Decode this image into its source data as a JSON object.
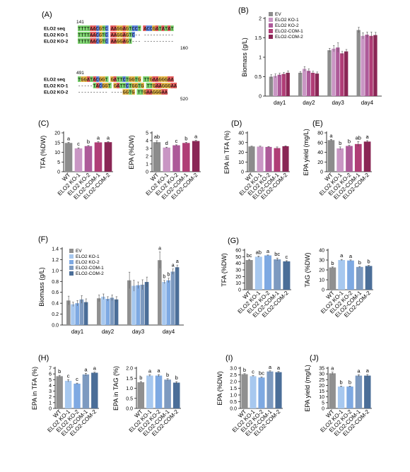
{
  "colors": {
    "ev_gray": "#8c8c8c",
    "ko1_purple": "#c996c4",
    "ko2_purple": "#ad5a99",
    "com1_purple": "#b03d76",
    "com2_purple": "#8a2655",
    "wt_gray": "#909090",
    "ko1_blue": "#a7c8ef",
    "ko2_blue": "#7ea9e2",
    "com1_blue": "#7d9ac0",
    "com2_blue": "#4b6e98",
    "seq_green": "#7bd36d",
    "seq_blue": "#5f86e0",
    "seq_red": "#e35c5c",
    "seq_yellow": "#e8b84a"
  },
  "panel_a": {
    "label": "(A)",
    "block1": {
      "start": "141",
      "end": "160",
      "rows": [
        {
          "name": "ELO2 seq",
          "seq": "TTTTAACGTC AAGGAGTCCT ACCGATATAT"
        },
        {
          "name": "ELO2 KO-1",
          "seq": "TTTTAACGTC AAGGAGTC-- ----------"
        },
        {
          "name": "ELO2 KO-2",
          "seq": "TTTTAACGTC AAGGAGT--- ----------"
        }
      ]
    },
    "block2": {
      "start": "491",
      "end": "520",
      "rows": [
        {
          "name": "ELO2 seq",
          "seq": "TGGATACGGT GATTCTGGTG TTGAAGGGAA"
        },
        {
          "name": "ELO2 KO-1",
          "seq": "-----TACGGT GATTCTGGTG TTGAAGGGAA"
        },
        {
          "name": "ELO2 KO-2",
          "seq": "---------- ----GGTG TTGAAGGGAA"
        }
      ]
    }
  },
  "chart_data": [
    {
      "panel": "(B)",
      "type": "bar",
      "categories": [
        "day1",
        "day2",
        "day3",
        "day4"
      ],
      "ylabel": "Biomass (g/L)",
      "ylim": [
        0,
        2.0
      ],
      "yticks": [
        "0",
        "0.5",
        "1",
        "1.5",
        "2"
      ],
      "legend": "top-left",
      "series": [
        {
          "name": "EV",
          "values": [
            0.5,
            0.6,
            1.18,
            1.7
          ],
          "err": [
            0.05,
            0.03,
            0.05,
            0.07
          ]
        },
        {
          "name": "ELO2 KO-1",
          "values": [
            0.52,
            0.7,
            1.22,
            1.55
          ],
          "err": [
            0.05,
            0.06,
            0.08,
            0.08
          ]
        },
        {
          "name": "ELO2 KO-2",
          "values": [
            0.55,
            0.65,
            1.25,
            1.58
          ],
          "err": [
            0.04,
            0.05,
            0.12,
            0.07
          ]
        },
        {
          "name": "ELO2-COM-1",
          "values": [
            0.57,
            0.6,
            1.1,
            1.55
          ],
          "err": [
            0.04,
            0.04,
            0.05,
            0.1
          ]
        },
        {
          "name": "ELO2-COM-2",
          "values": [
            0.6,
            0.58,
            1.15,
            1.57
          ],
          "err": [
            0.05,
            0.04,
            0.05,
            0.07
          ]
        }
      ]
    },
    {
      "panel": "(C)",
      "type": "bar",
      "categories": [
        "WT",
        "ELO2 KO-1",
        "ELO2 KO-2",
        "ELO2-COM-1",
        "ELO2-COM-2"
      ],
      "ylabel": "TFA (%DW)",
      "ylim": [
        0,
        20
      ],
      "yticks": [
        "0",
        "5",
        "10",
        "15",
        "20"
      ],
      "values": [
        14.8,
        12.0,
        13.2,
        15.1,
        15.2
      ],
      "err": [
        0.3,
        0.3,
        0.3,
        0.4,
        0.3
      ],
      "letters": [
        "a",
        "c",
        "b",
        "a",
        "a"
      ]
    },
    {
      "panel": "",
      "type": "bar",
      "categories": [
        "WT",
        "ELO2 KO-1",
        "ELO2 KO-2",
        "ELO2-COM-1",
        "ELO2-COM-2"
      ],
      "ylabel": "EPA (%DW)",
      "ylim": [
        0,
        5
      ],
      "yticks": [
        "0",
        "1",
        "2",
        "3",
        "4",
        "5"
      ],
      "values": [
        3.8,
        3.1,
        3.4,
        3.7,
        3.95
      ],
      "err": [
        0.2,
        0.06,
        0.06,
        0.08,
        0.1
      ],
      "letters": [
        "ab",
        "d",
        "c",
        "b",
        "a"
      ]
    },
    {
      "panel": "(D)",
      "type": "bar",
      "categories": [
        "WT",
        "ELO2 KO-1",
        "ELO2 KO-2",
        "ELO2-COM-1",
        "ELO2-COM-2"
      ],
      "ylabel": "EPA in TFA (%)",
      "ylim": [
        0,
        40
      ],
      "yticks": [
        "0",
        "10",
        "20",
        "30",
        "40"
      ],
      "values": [
        26.0,
        25.8,
        25.5,
        24.3,
        26.2
      ],
      "err": [
        0.3,
        0.5,
        0.4,
        1.2,
        0.5
      ],
      "letters": []
    },
    {
      "panel": "(E)",
      "type": "bar",
      "categories": [
        "WT",
        "ELO2 KO-1",
        "ELO2 KO-2",
        "ELO2-COM-1",
        "ELO2-COM-2"
      ],
      "ylabel": "EPA yield (mg/L)",
      "ylim": [
        0,
        80
      ],
      "yticks": [
        "0",
        "20",
        "40",
        "60",
        "80"
      ],
      "values": [
        65,
        48,
        53,
        57,
        62
      ],
      "err": [
        1.5,
        3,
        1.5,
        5,
        2
      ],
      "letters": [
        "a",
        "b",
        "b",
        "ab",
        "a"
      ]
    },
    {
      "panel": "(F)",
      "type": "bar",
      "categories": [
        "day1",
        "day2",
        "day3",
        "day4"
      ],
      "ylabel": "Biomass (g/L)",
      "ylim": [
        0,
        1.4
      ],
      "yticks": [
        "0.0",
        "0.2",
        "0.4",
        "0.6",
        "0.8",
        "1.0",
        "1.2",
        "1.4"
      ],
      "legend": "top-left",
      "series": [
        {
          "name": "EV",
          "values": [
            0.45,
            0.49,
            0.82,
            1.19
          ],
          "err": [
            0.08,
            0.06,
            0.15,
            0.15
          ]
        },
        {
          "name": "ELO2 KO-1",
          "values": [
            0.38,
            0.52,
            0.72,
            0.79
          ],
          "err": [
            0.04,
            0.05,
            0.1,
            0.03
          ]
        },
        {
          "name": "ELO2 KO-2",
          "values": [
            0.4,
            0.48,
            0.73,
            0.82
          ],
          "err": [
            0.05,
            0.04,
            0.06,
            0.04
          ]
        },
        {
          "name": "ELO2-COM-1",
          "values": [
            0.47,
            0.5,
            0.74,
            0.98
          ],
          "err": [
            0.07,
            0.05,
            0.09,
            0.05
          ]
        },
        {
          "name": "ELO2-COM-2",
          "values": [
            0.42,
            0.47,
            0.79,
            1.06
          ],
          "err": [
            0.06,
            0.05,
            0.09,
            0.04
          ]
        }
      ],
      "annotation_day": 3,
      "letters": [
        "a",
        "b",
        "b",
        "a",
        "a"
      ]
    },
    {
      "panel": "(G)",
      "type": "bar",
      "categories": [
        "WT",
        "ELO2 KO-1",
        "ELO2 KO-2",
        "ELO2-COM-1",
        "ELO2-COM-2"
      ],
      "ylabel": "TFA (%DW)",
      "ylim": [
        0,
        60
      ],
      "yticks": [
        "0",
        "10",
        "20",
        "30",
        "40",
        "50",
        "60"
      ],
      "values": [
        45,
        50,
        52,
        46,
        43
      ],
      "err": [
        1,
        1,
        0.6,
        2,
        1
      ],
      "letters": [
        "bc",
        "ab",
        "a",
        "bc",
        "c"
      ]
    },
    {
      "panel": "",
      "type": "bar",
      "categories": [
        "WT",
        "ELO2 KO-1",
        "ELO2 KO-2",
        "ELO2-COM-1",
        "ELO2-COM-2"
      ],
      "ylabel": "TAG (%DW)",
      "ylim": [
        0,
        40
      ],
      "yticks": [
        "0",
        "10",
        "20",
        "30",
        "40"
      ],
      "values": [
        22.5,
        30,
        29.5,
        23,
        24
      ],
      "err": [
        0.5,
        0.6,
        0.6,
        0.5,
        0.5
      ],
      "letters": [
        "b",
        "a",
        "a",
        "b",
        "b"
      ]
    },
    {
      "panel": "(H)",
      "type": "bar",
      "categories": [
        "WT",
        "ELO2 KO-1",
        "ELO2 KO-2",
        "ELO2-COM-1",
        "ELO2-COM-2"
      ],
      "ylabel": "EPA in TFA (%)",
      "ylim": [
        0,
        7
      ],
      "yticks": [
        "0",
        "1",
        "2",
        "3",
        "4",
        "5",
        "6",
        "7"
      ],
      "values": [
        5.6,
        4.8,
        4.3,
        5.9,
        6.2
      ],
      "err": [
        0.15,
        0.2,
        0.1,
        0.2,
        0.1
      ],
      "letters": [
        "b",
        "c",
        "c",
        "a",
        "a"
      ]
    },
    {
      "panel": "",
      "type": "bar",
      "categories": [
        "WT",
        "ELO2 KO-1",
        "ELO2 KO-2",
        "ELO2-COM-1",
        "ELO2-COM-2"
      ],
      "ylabel": "EPA in TAG (%)",
      "ylim": [
        0,
        2.0
      ],
      "yticks": [
        "0.0",
        "0.5",
        "1.0",
        "1.5",
        "2.0"
      ],
      "values": [
        1.3,
        1.63,
        1.63,
        1.43,
        1.28
      ],
      "err": [
        0.04,
        0.04,
        0.05,
        0.05,
        0.05
      ],
      "letters": [
        "b",
        "a",
        "a",
        "b",
        "b"
      ]
    },
    {
      "panel": "(I)",
      "type": "bar",
      "categories": [
        "WT",
        "ELO2 KO-1",
        "ELO2 KO-2",
        "ELO2-COM-1",
        "ELO2-COM-2"
      ],
      "ylabel": "EPA (%DW)",
      "ylim": [
        0,
        3.0
      ],
      "yticks": [
        "0.0",
        "0.5",
        "1.0",
        "1.5",
        "2.0",
        "2.5",
        "3.0"
      ],
      "values": [
        2.55,
        2.4,
        2.3,
        2.75,
        2.7
      ],
      "err": [
        0.04,
        0.04,
        0.04,
        0.05,
        0.05
      ],
      "letters": [
        "b",
        "c",
        "bc",
        "a",
        "a"
      ]
    },
    {
      "panel": "(J)",
      "type": "bar",
      "categories": [
        "WT",
        "ELO2 KO-1",
        "ELO2 KO-2",
        "ELO2-COM-1",
        "ELO2-COM-2"
      ],
      "ylabel": "EPA yield (mg/L)",
      "ylim": [
        0,
        35
      ],
      "yticks": [
        "0",
        "5",
        "10",
        "15",
        "20",
        "25",
        "30",
        "35"
      ],
      "values": [
        30.5,
        19,
        19,
        28.5,
        28.5
      ],
      "err": [
        1,
        0.4,
        0.4,
        0.8,
        1
      ],
      "letters": [
        "a",
        "b",
        "b",
        "a",
        "a"
      ]
    }
  ]
}
